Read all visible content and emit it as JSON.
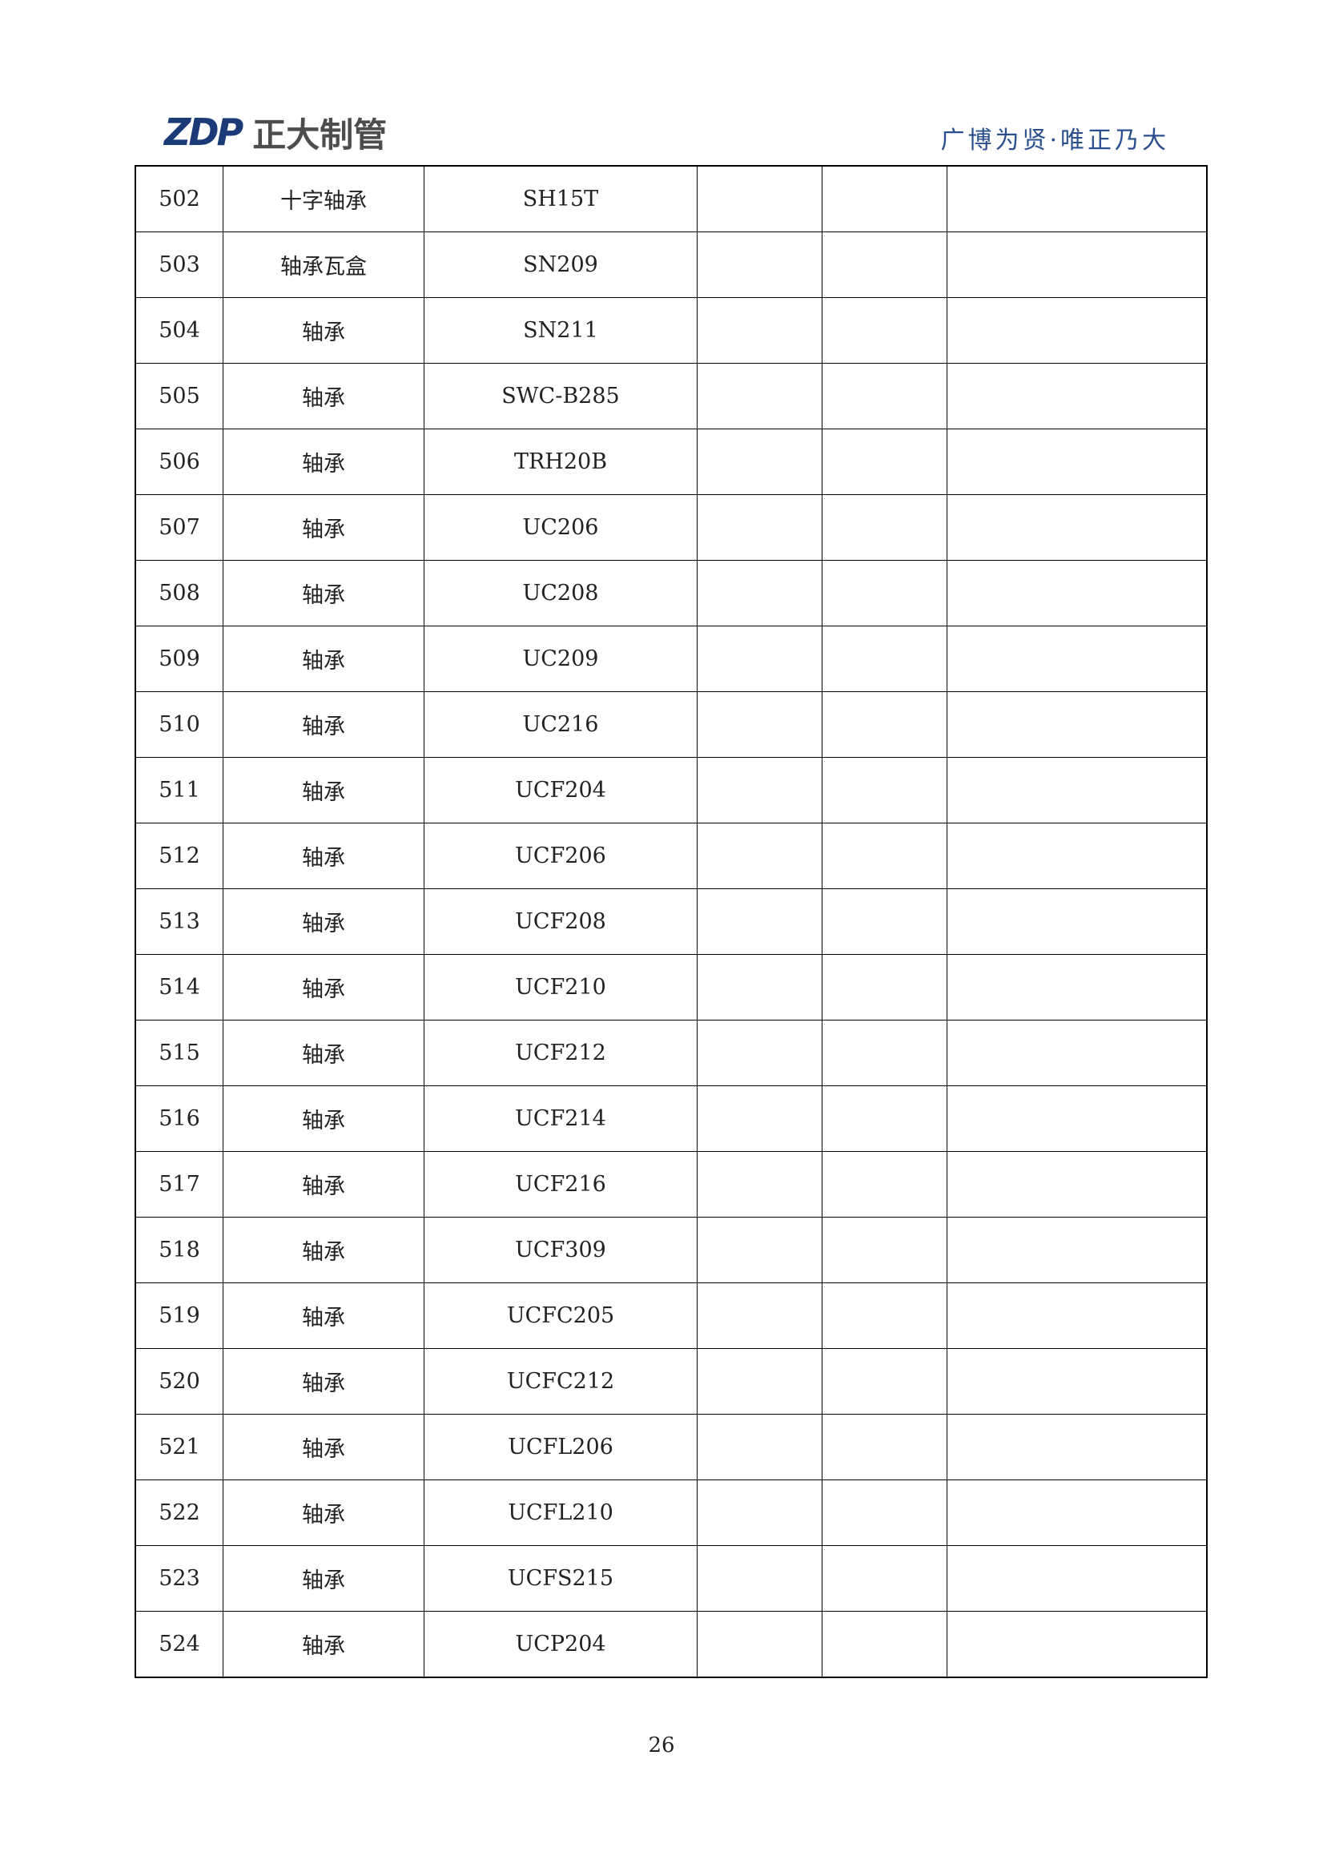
{
  "header": {
    "logo_mark": "ZDP",
    "logo_name": "正大制管",
    "tagline": "广博为贤·唯正乃大"
  },
  "rows": [
    {
      "no": "502",
      "name": "十字轴承",
      "model": "SH15T"
    },
    {
      "no": "503",
      "name": "轴承瓦盒",
      "model": "SN209"
    },
    {
      "no": "504",
      "name": "轴承",
      "model": "SN211"
    },
    {
      "no": "505",
      "name": "轴承",
      "model": "SWC-B285"
    },
    {
      "no": "506",
      "name": "轴承",
      "model": "TRH20B"
    },
    {
      "no": "507",
      "name": "轴承",
      "model": "UC206"
    },
    {
      "no": "508",
      "name": "轴承",
      "model": "UC208"
    },
    {
      "no": "509",
      "name": "轴承",
      "model": "UC209"
    },
    {
      "no": "510",
      "name": "轴承",
      "model": "UC216"
    },
    {
      "no": "511",
      "name": "轴承",
      "model": "UCF204"
    },
    {
      "no": "512",
      "name": "轴承",
      "model": "UCF206"
    },
    {
      "no": "513",
      "name": "轴承",
      "model": "UCF208"
    },
    {
      "no": "514",
      "name": "轴承",
      "model": "UCF210"
    },
    {
      "no": "515",
      "name": "轴承",
      "model": "UCF212"
    },
    {
      "no": "516",
      "name": "轴承",
      "model": "UCF214"
    },
    {
      "no": "517",
      "name": "轴承",
      "model": "UCF216"
    },
    {
      "no": "518",
      "name": "轴承",
      "model": "UCF309"
    },
    {
      "no": "519",
      "name": "轴承",
      "model": "UCFC205"
    },
    {
      "no": "520",
      "name": "轴承",
      "model": "UCFC212"
    },
    {
      "no": "521",
      "name": "轴承",
      "model": "UCFL206"
    },
    {
      "no": "522",
      "name": "轴承",
      "model": "UCFL210"
    },
    {
      "no": "523",
      "name": "轴承",
      "model": "UCFS215"
    },
    {
      "no": "524",
      "name": "轴承",
      "model": "UCP204"
    }
  ],
  "page_number": "26"
}
